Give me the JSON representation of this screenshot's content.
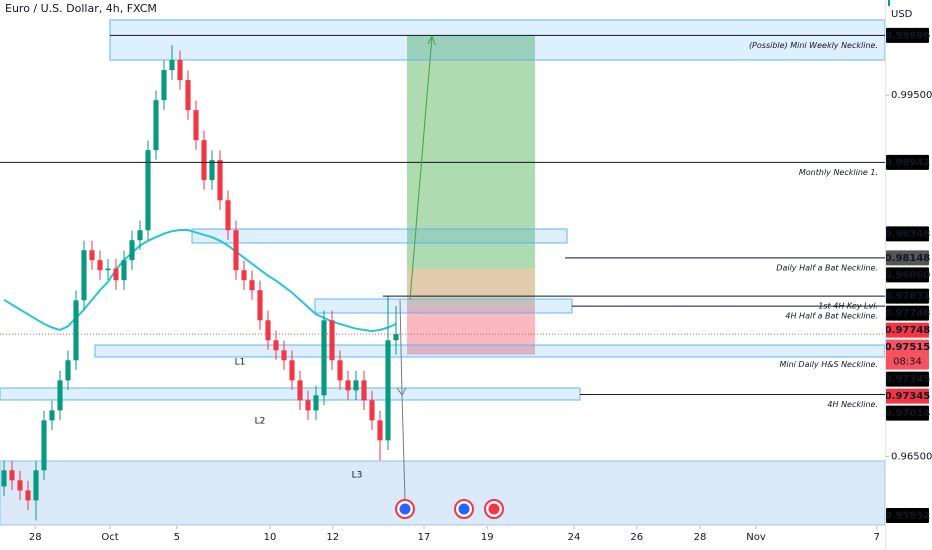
{
  "header": {
    "title": "Euro / U.S. Dollar, 4h, FXCM"
  },
  "chart_data": {
    "type": "candlestick",
    "currency": "USD",
    "xlim": [
      0,
      110.625
    ],
    "ylim": [
      0.9593,
      1.0029
    ],
    "xticks": [
      {
        "value": 4.4,
        "label": "28"
      },
      {
        "value": 13.75,
        "label": "Oct"
      },
      {
        "value": 22.1,
        "label": "5"
      },
      {
        "value": 33.75,
        "label": "10"
      },
      {
        "value": 41.6,
        "label": "12"
      },
      {
        "value": 53,
        "label": "17"
      },
      {
        "value": 60.9,
        "label": "19"
      },
      {
        "value": 71.75,
        "label": "24"
      },
      {
        "value": 79.6,
        "label": "26"
      },
      {
        "value": 87.5,
        "label": "28"
      },
      {
        "value": 94.5,
        "label": "Nov"
      },
      {
        "value": 109.6,
        "label": "7"
      }
    ],
    "yticks": [
      {
        "value": 0.995,
        "label": "0.99500"
      },
      {
        "value": 0.965,
        "label": "0.96500"
      }
    ],
    "up_color": "#089981",
    "down_color": "#f23645",
    "candles": {
      "open": [
        0.9625,
        0.96384,
        0.96301,
        0.96217,
        0.96134,
        0.96384,
        0.96799,
        0.96882,
        0.97131,
        0.97298,
        0.97796,
        0.98212,
        0.98129,
        0.98046,
        0.9806,
        0.97963,
        0.98129,
        0.98295,
        0.98378,
        0.99043,
        0.99458,
        0.99708,
        0.99791,
        0.99625,
        0.99375,
        0.99126,
        0.98794,
        0.9896,
        0.98627,
        0.98378,
        0.98046,
        0.97963,
        0.9788,
        0.9763,
        0.97464,
        0.97381,
        0.97298,
        0.97131,
        0.96965,
        0.96882,
        0.97007,
        0.9763,
        0.97298,
        0.97131,
        0.97048,
        0.97131,
        0.96965,
        0.96799,
        0.96633,
        0.97464
      ],
      "high": [
        0.96464,
        0.96464,
        0.96381,
        0.96297,
        0.96464,
        0.96879,
        0.96962,
        0.97211,
        0.97378,
        0.97876,
        0.98292,
        0.98292,
        0.98209,
        0.9814,
        0.9814,
        0.98209,
        0.98375,
        0.98458,
        0.99123,
        0.99538,
        0.99788,
        0.99916,
        0.99871,
        0.99705,
        0.99455,
        0.99206,
        0.9904,
        0.9904,
        0.98707,
        0.98458,
        0.98126,
        0.98043,
        0.9796,
        0.9771,
        0.97544,
        0.97461,
        0.97378,
        0.97211,
        0.97045,
        0.97087,
        0.9771,
        0.9771,
        0.97378,
        0.97211,
        0.97211,
        0.97211,
        0.97045,
        0.96879,
        0.97831,
        0.97748
      ],
      "low": [
        0.9617,
        0.96221,
        0.96137,
        0.96054,
        0.95968,
        0.96304,
        0.96719,
        0.96802,
        0.97051,
        0.97218,
        0.97716,
        0.98049,
        0.97966,
        0.97966,
        0.97883,
        0.97883,
        0.98049,
        0.98215,
        0.98298,
        0.98963,
        0.99378,
        0.99628,
        0.99545,
        0.99295,
        0.99046,
        0.98714,
        0.98714,
        0.98547,
        0.98298,
        0.97966,
        0.97883,
        0.978,
        0.9755,
        0.97384,
        0.97301,
        0.97218,
        0.97051,
        0.96885,
        0.96802,
        0.96802,
        0.96927,
        0.97218,
        0.97051,
        0.96968,
        0.96968,
        0.96885,
        0.96719,
        0.96467,
        0.96553,
        0.97345
      ],
      "close": [
        0.96384,
        0.96301,
        0.96217,
        0.96134,
        0.96384,
        0.96799,
        0.96882,
        0.97131,
        0.97298,
        0.97796,
        0.98212,
        0.98129,
        0.98046,
        0.9806,
        0.97963,
        0.98129,
        0.98295,
        0.98378,
        0.99043,
        0.99458,
        0.99708,
        0.99791,
        0.99625,
        0.99375,
        0.99126,
        0.98794,
        0.9896,
        0.98627,
        0.98378,
        0.98046,
        0.97963,
        0.9788,
        0.9763,
        0.97464,
        0.97381,
        0.97298,
        0.97131,
        0.96965,
        0.96882,
        0.97007,
        0.9763,
        0.97298,
        0.97131,
        0.97048,
        0.97131,
        0.96965,
        0.96799,
        0.96633,
        0.97464,
        0.97515
      ]
    },
    "ema": {
      "color": "#26c6da",
      "values": [
        0.978,
        0.9776,
        0.9772,
        0.9768,
        0.9764,
        0.976,
        0.9757,
        0.9755,
        0.9758,
        0.9765,
        0.9772,
        0.978,
        0.9788,
        0.9795,
        0.9805,
        0.9813,
        0.9819,
        0.9825,
        0.9829,
        0.9832,
        0.9835,
        0.9837,
        0.9838,
        0.9838,
        0.9836,
        0.9834,
        0.9832,
        0.9829,
        0.9825,
        0.982,
        0.9815,
        0.981,
        0.9805,
        0.98,
        0.9796,
        0.9791,
        0.9786,
        0.978,
        0.9774,
        0.9768,
        0.9765,
        0.9762,
        0.976,
        0.9758,
        0.9756,
        0.9755,
        0.9754,
        0.9755,
        0.9757,
        0.976
      ]
    },
    "levels": [
      {
        "label": "(Possible) Mini Weekly Neckline.",
        "value": 0.99996,
        "color": "#9598a1"
      },
      {
        "label": "Monthly Neckline 1.",
        "value": 0.98942,
        "color": "#131722"
      },
      {
        "label": "Daily Half a Bat Neckline.",
        "value": 0.98148,
        "color": "#131722"
      },
      {
        "label": "1st 4H Key Lvl.",
        "value": 0.97831,
        "color": "#131722"
      },
      {
        "label": "4H Half a Bat Neckline.",
        "value": 0.97748,
        "color": "#131722"
      },
      {
        "label": "Mini Daily H&S Neckline.",
        "value": 0.97345,
        "color": "#9598a1"
      },
      {
        "label": "4H Neckline.",
        "value": 0.97014,
        "color": "#131722"
      }
    ],
    "price_labels": [
      {
        "value": 0.99996,
        "label": "0.99996",
        "color": "#000000"
      },
      {
        "value": 0.98942,
        "label": "0.98942",
        "color": "#000000"
      },
      {
        "value": 0.98348,
        "label": "0.98348",
        "color": "#000000"
      },
      {
        "value": 0.98148,
        "label": "0.98148",
        "color": "#555555"
      },
      {
        "value": 0.9806,
        "label": "0.98060",
        "color": "#000000"
      },
      {
        "value": 0.97831,
        "label": "0.97831",
        "color": "#000000"
      },
      {
        "value": 0.97748,
        "label": "0.97748",
        "color": "#000000"
      },
      {
        "value": 0.97748,
        "label": "0.97748",
        "color": "#f23645"
      },
      {
        "value": 0.97515,
        "label": "0.97515",
        "color": "#f7525f"
      },
      {
        "value": 0.97345,
        "label": "0.97345",
        "color": "#000000"
      },
      {
        "value": 0.97345,
        "label": "0.97345",
        "color": "#f23645"
      },
      {
        "value": 0.97014,
        "label": "0.97014",
        "color": "#000000"
      },
      {
        "value": 0.95952,
        "label": "0.95952",
        "color": "#000000"
      }
    ],
    "countdown": "08:34",
    "annotations": [
      "L1",
      "L2",
      "L3"
    ]
  }
}
